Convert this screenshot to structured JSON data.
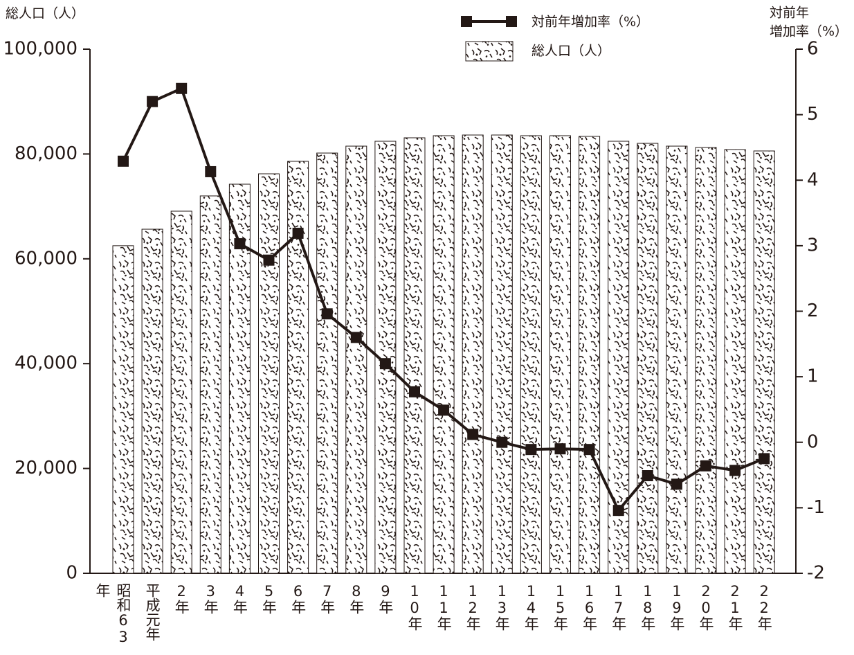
{
  "chart_data": {
    "type": "bar_line",
    "y_label": "総人口（人）",
    "y2_label": [
      "対前年",
      "増加率（%）"
    ],
    "categories": [
      "昭和63年",
      "平成元年",
      "2年",
      "3年",
      "4年",
      "5年",
      "6年",
      "7年",
      "8年",
      "9年",
      "10年",
      "11年",
      "12年",
      "13年",
      "14年",
      "15年",
      "16年",
      "17年",
      "18年",
      "19年",
      "20年",
      "21年",
      "22年"
    ],
    "series": [
      {
        "name": "総人口（人）",
        "type": "bar",
        "color": "#231815",
        "values": [
          62500,
          65650,
          69090,
          72000,
          74240,
          76220,
          78600,
          80180,
          81500,
          82430,
          83090,
          83490,
          83620,
          83620,
          83490,
          83490,
          83360,
          82430,
          82030,
          81500,
          81240,
          80850,
          80580
        ]
      },
      {
        "name": "対前年増加率（%）",
        "type": "line",
        "axis": "y2",
        "color": "#231815",
        "values": [
          4.29,
          5.2,
          5.4,
          4.13,
          3.03,
          2.78,
          3.19,
          1.96,
          1.6,
          1.2,
          0.77,
          0.49,
          0.12,
          0,
          -0.11,
          -0.1,
          -0.11,
          -1.04,
          -0.51,
          -0.64,
          -0.36,
          -0.43,
          -0.25
        ]
      }
    ],
    "ylim": [
      0,
      100000
    ],
    "yticks": [
      0,
      {
        "value": 20000,
        "label": "20,000"
      },
      {
        "value": 40000,
        "label": "40,000"
      },
      {
        "value": 60000,
        "label": "60,000"
      },
      {
        "value": 80000,
        "label": "80,000"
      },
      {
        "value": 100000,
        "label": "100,000"
      }
    ],
    "y2lim": [
      -2,
      6
    ],
    "y2ticks": [
      -2,
      -1,
      0,
      1,
      2,
      3,
      4,
      5,
      6
    ],
    "grid": false
  }
}
